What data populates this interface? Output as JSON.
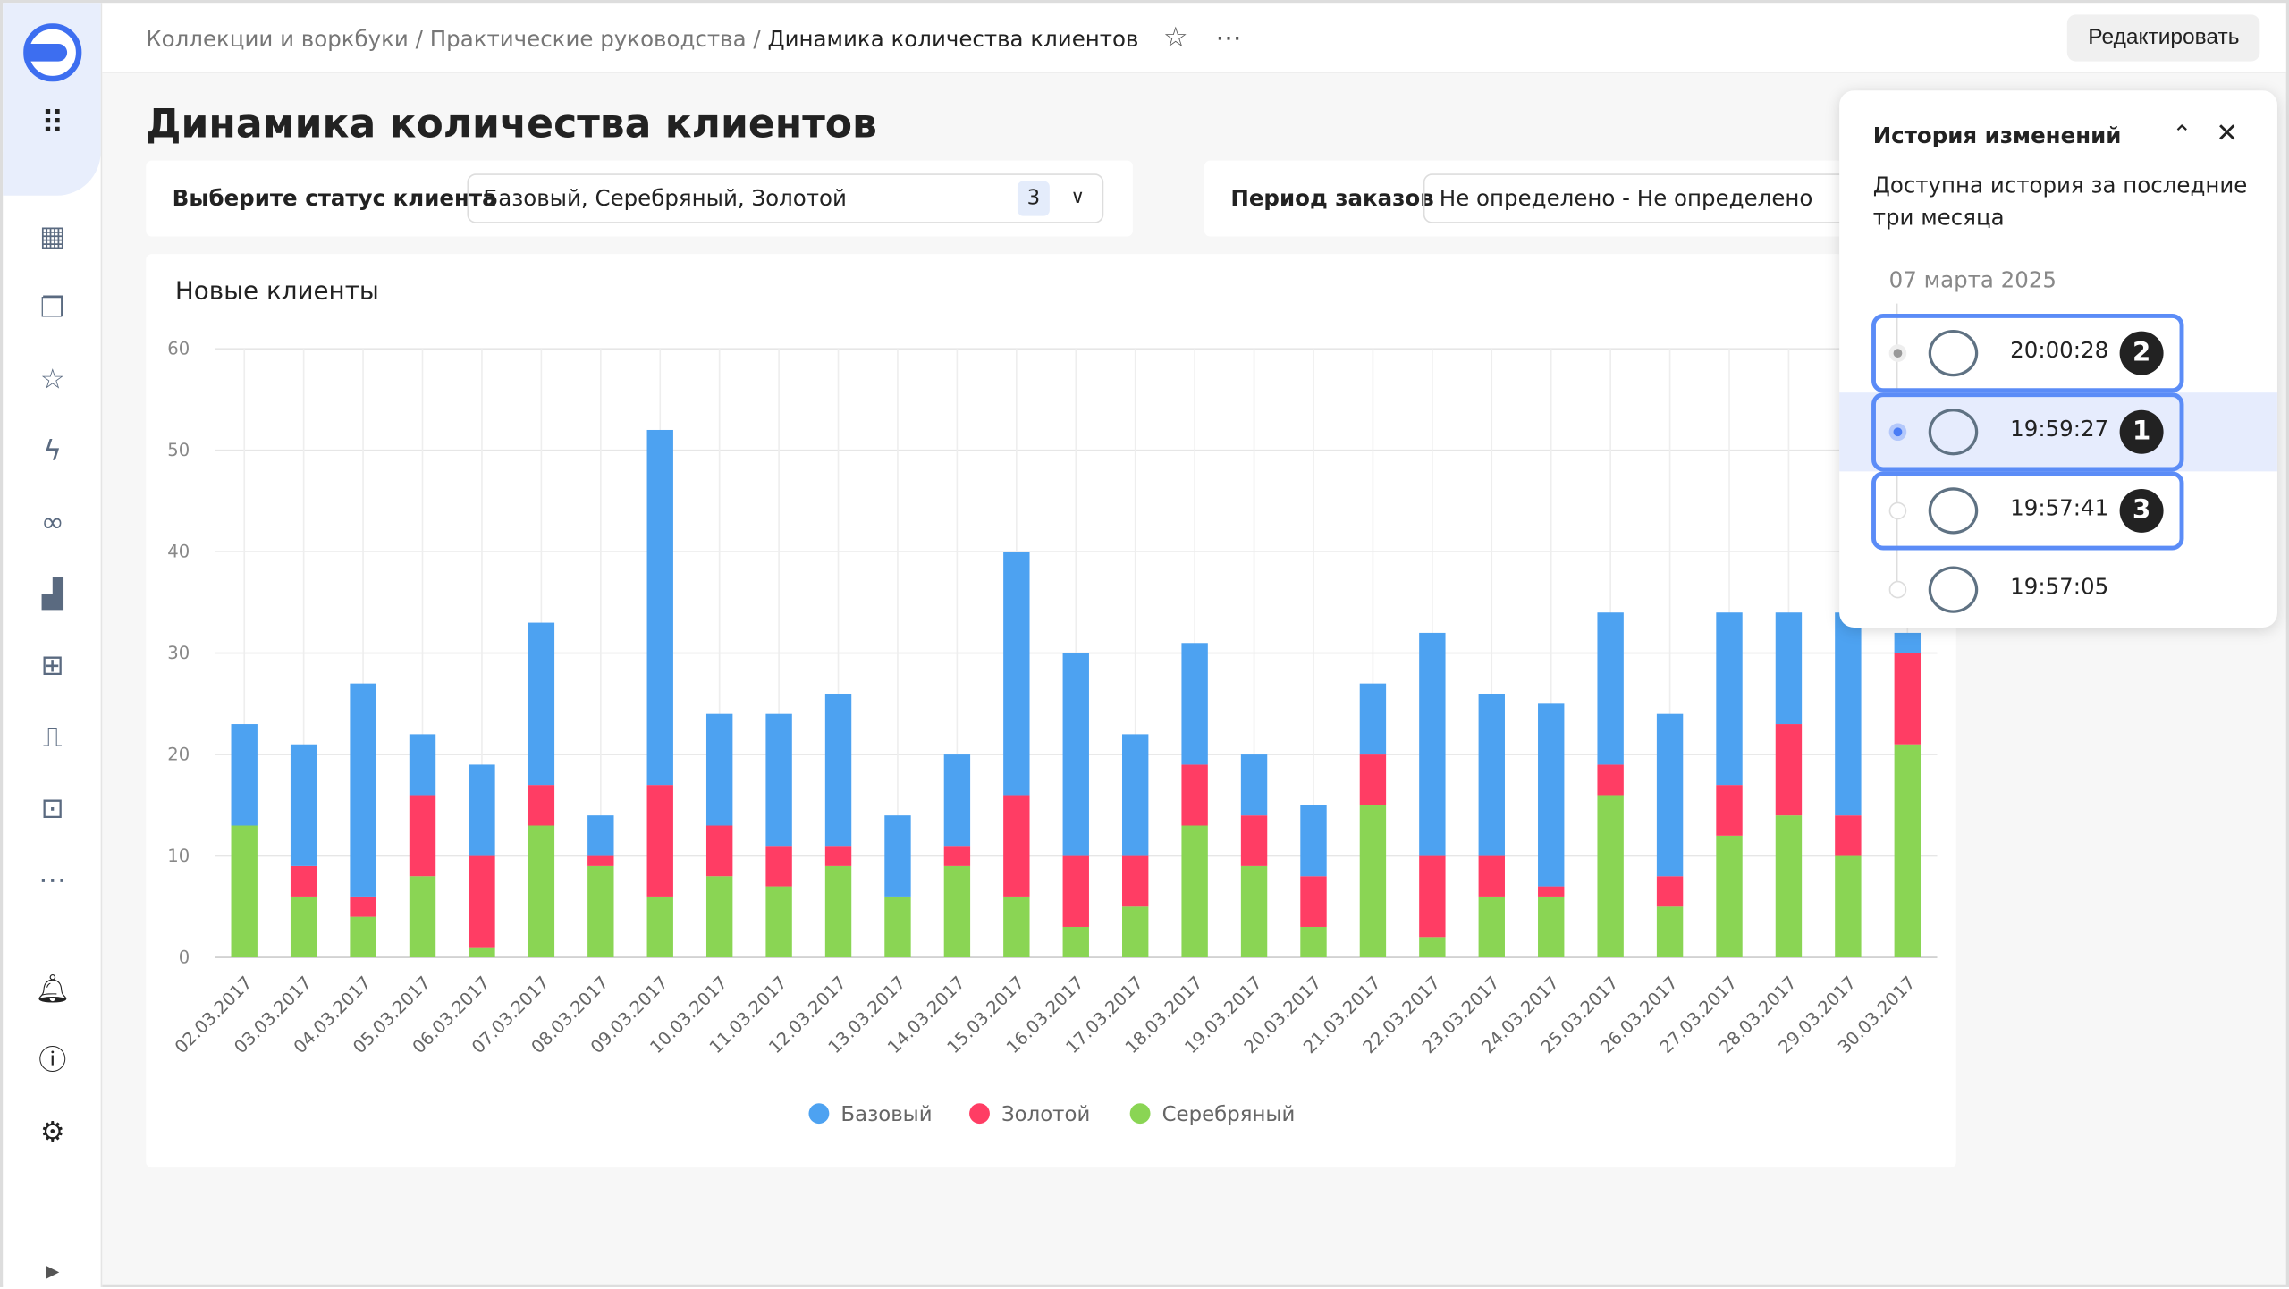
{
  "header": {
    "breadcrumbs": [
      "Коллекции и воркбуки",
      "Практические руководства"
    ],
    "current": "Динамика количества клиентов",
    "edit_label": "Редактировать",
    "separator": "/"
  },
  "page_title": "Динамика количества клиентов",
  "filters": {
    "status": {
      "label": "Выберите статус клиента",
      "value": "Базовый, Серебряный, Золотой",
      "count": "3"
    },
    "period": {
      "label": "Период заказов",
      "value": "Не определено - Не определено"
    }
  },
  "sidebar": {
    "icons": [
      "logo",
      "apps-grid",
      "dashboards",
      "collections",
      "favorites",
      "actions",
      "connections",
      "charts",
      "datasets",
      "monitoring",
      "workbooks",
      "more",
      "notifications",
      "help",
      "settings",
      "expand"
    ]
  },
  "history": {
    "title": "История изменений",
    "description": "Доступна история за последние три месяца",
    "date": "07 марта 2025",
    "items": [
      {
        "time": "20:00:28",
        "badge": "2",
        "highlighted": true,
        "selected": false
      },
      {
        "time": "19:59:27",
        "badge": "1",
        "highlighted": true,
        "selected": true
      },
      {
        "time": "19:57:41",
        "badge": "3",
        "highlighted": true,
        "selected": false
      },
      {
        "time": "19:57:05",
        "badge": "",
        "highlighted": false,
        "selected": false
      }
    ]
  },
  "chart_data": {
    "type": "bar",
    "stacked": true,
    "title": "Новые клиенты",
    "ylim": [
      0,
      60
    ],
    "yticks": [
      0,
      10,
      20,
      30,
      40,
      50,
      60
    ],
    "grid": true,
    "legend_placement": "bottom",
    "categories": [
      "02.03.2017",
      "03.03.2017",
      "04.03.2017",
      "05.03.2017",
      "06.03.2017",
      "07.03.2017",
      "08.03.2017",
      "09.03.2017",
      "10.03.2017",
      "11.03.2017",
      "12.03.2017",
      "13.03.2017",
      "14.03.2017",
      "15.03.2017",
      "16.03.2017",
      "17.03.2017",
      "18.03.2017",
      "19.03.2017",
      "20.03.2017",
      "21.03.2017",
      "22.03.2017",
      "23.03.2017",
      "24.03.2017",
      "25.03.2017",
      "26.03.2017",
      "27.03.2017",
      "28.03.2017",
      "29.03.2017",
      "30.03.2017"
    ],
    "series": [
      {
        "name": "Серебряный",
        "color": "#8ad554",
        "values": [
          13,
          6,
          4,
          8,
          1,
          13,
          9,
          6,
          8,
          7,
          9,
          6,
          9,
          6,
          3,
          5,
          13,
          9,
          3,
          15,
          2,
          6,
          6,
          16,
          5,
          12,
          14,
          10,
          21
        ]
      },
      {
        "name": "Золотой",
        "color": "#ff3d64",
        "values": [
          0,
          3,
          2,
          8,
          9,
          4,
          1,
          11,
          5,
          4,
          2,
          0,
          2,
          10,
          7,
          5,
          6,
          5,
          5,
          5,
          8,
          4,
          1,
          3,
          3,
          5,
          9,
          4,
          9
        ]
      },
      {
        "name": "Базовый",
        "color": "#4da2f1",
        "values": [
          10,
          12,
          21,
          6,
          9,
          16,
          4,
          35,
          11,
          13,
          15,
          8,
          9,
          24,
          20,
          12,
          12,
          6,
          7,
          7,
          22,
          16,
          18,
          15,
          16,
          17,
          11,
          20,
          2
        ]
      }
    ],
    "legend": [
      "Базовый",
      "Золотой",
      "Серебряный"
    ]
  }
}
